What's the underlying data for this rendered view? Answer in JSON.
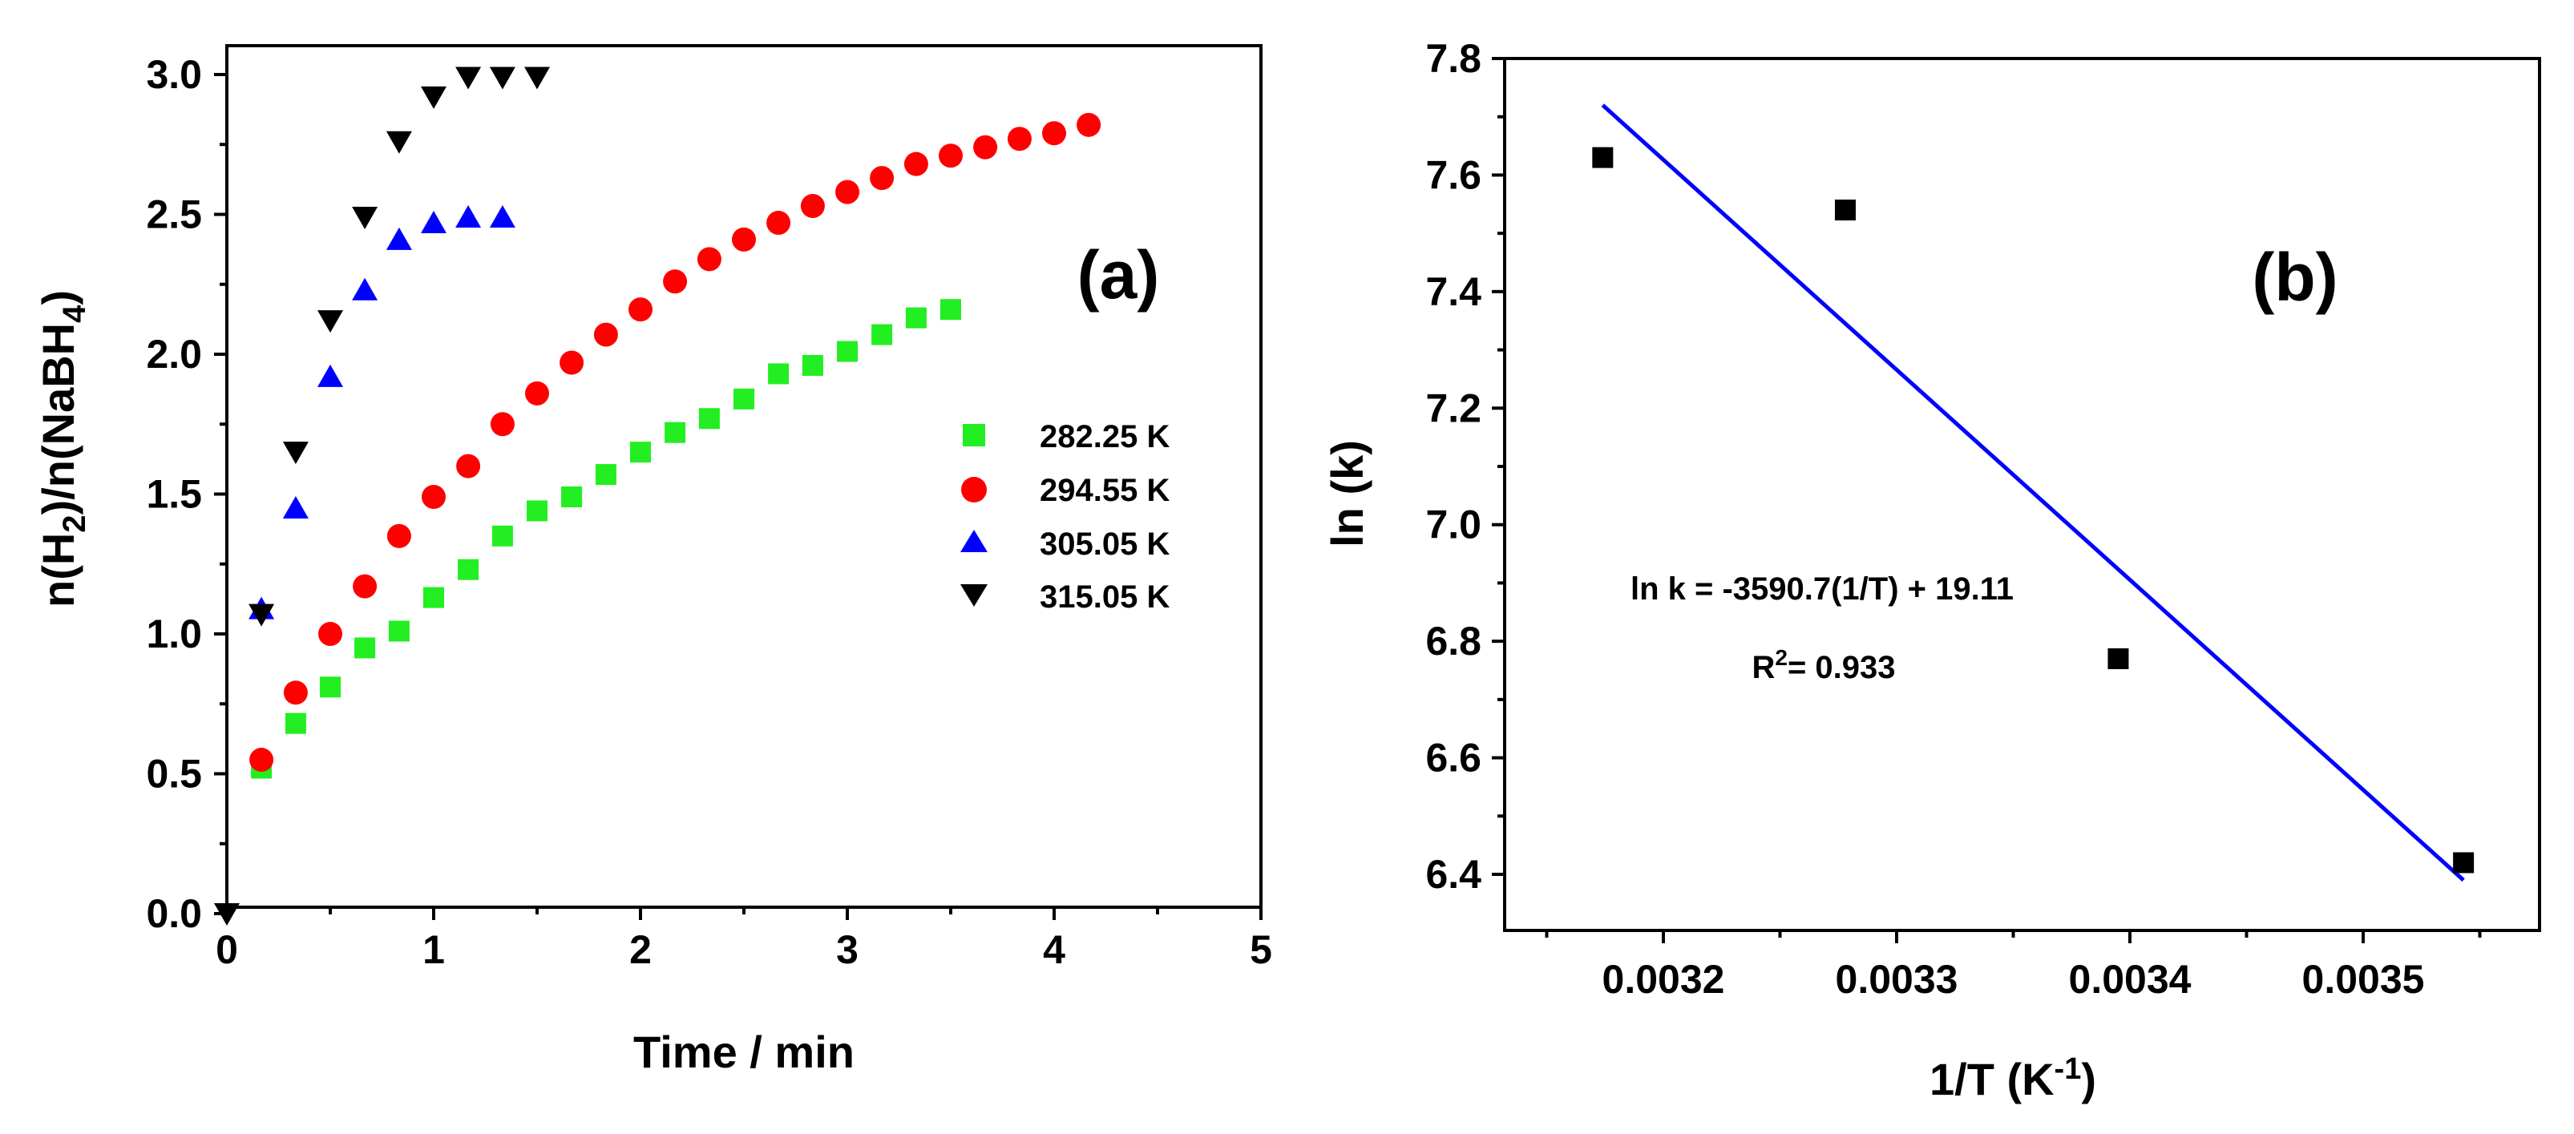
{
  "chart_data": [
    {
      "type": "scatter",
      "panel_label": "(a)",
      "xlabel": "Time / min",
      "ylabel": {
        "base": "n(H",
        "sub1": "2",
        "mid": ")/n(NaBH",
        "sub2": "4",
        "end": ")"
      },
      "xlim": [
        0,
        5
      ],
      "ylim": [
        0,
        3.0
      ],
      "xticks": [
        "0",
        "1",
        "2",
        "3",
        "4",
        "5"
      ],
      "yticks": [
        "0.0",
        "0.5",
        "1.0",
        "1.5",
        "2.0",
        "2.5",
        "3.0"
      ],
      "legend_position": "right-middle",
      "series": [
        {
          "name": "282.25 K",
          "marker": "square",
          "color": "#22ee22",
          "x": [
            0.167,
            0.333,
            0.5,
            0.667,
            0.833,
            1.0,
            1.167,
            1.333,
            1.5,
            1.667,
            1.833,
            2.0,
            2.167,
            2.333,
            2.5,
            2.667,
            2.833,
            3.0,
            3.167,
            3.333,
            3.5
          ],
          "y": [
            0.52,
            0.68,
            0.81,
            0.95,
            1.01,
            1.13,
            1.23,
            1.35,
            1.44,
            1.49,
            1.57,
            1.65,
            1.72,
            1.77,
            1.84,
            1.93,
            1.96,
            2.01,
            2.07,
            2.13,
            2.16
          ]
        },
        {
          "name": "294.55 K",
          "marker": "circle",
          "color": "#ff0000",
          "x": [
            0.167,
            0.333,
            0.5,
            0.667,
            0.833,
            1.0,
            1.167,
            1.333,
            1.5,
            1.667,
            1.833,
            2.0,
            2.167,
            2.333,
            2.5,
            2.667,
            2.833,
            3.0,
            3.167,
            3.333,
            3.5,
            3.667,
            3.833,
            4.0,
            4.167
          ],
          "y": [
            0.55,
            0.79,
            1.0,
            1.17,
            1.35,
            1.49,
            1.6,
            1.75,
            1.86,
            1.97,
            2.07,
            2.16,
            2.26,
            2.34,
            2.41,
            2.47,
            2.53,
            2.58,
            2.63,
            2.68,
            2.71,
            2.74,
            2.77,
            2.79,
            2.82
          ]
        },
        {
          "name": "305.05 K",
          "marker": "triangle-up",
          "color": "#0000ff",
          "x": [
            0.167,
            0.333,
            0.5,
            0.667,
            0.833,
            1.0,
            1.167,
            1.333
          ],
          "y": [
            1.09,
            1.45,
            1.92,
            2.23,
            2.41,
            2.47,
            2.49,
            2.49
          ]
        },
        {
          "name": "315.05 K",
          "marker": "triangle-down",
          "color": "#000000",
          "x": [
            0.0,
            0.167,
            0.333,
            0.5,
            0.667,
            0.833,
            1.0,
            1.167,
            1.333,
            1.5
          ],
          "y": [
            0.0,
            1.07,
            1.65,
            2.12,
            2.49,
            2.76,
            2.92,
            2.99,
            2.99,
            2.99
          ]
        }
      ]
    },
    {
      "type": "scatter",
      "panel_label": "(b)",
      "xlabel": {
        "base": "1/T (K",
        "sup": "-1",
        "end": ")"
      },
      "ylabel": "ln (k)",
      "xlim": [
        0.003125,
        0.003575
      ],
      "ylim": [
        6.3,
        7.8
      ],
      "xticks": [
        "0.0032",
        "0.0033",
        "0.0034",
        "0.0035"
      ],
      "xtick_values": [
        0.0032,
        0.0033,
        0.0034,
        0.0035
      ],
      "yticks": [
        "6.4",
        "6.6",
        "6.8",
        "7.0",
        "7.2",
        "7.4",
        "7.6",
        "7.8"
      ],
      "ytick_values": [
        6.4,
        6.6,
        6.8,
        7.0,
        7.2,
        7.4,
        7.6,
        7.8
      ],
      "points": {
        "marker": "square",
        "color": "#000000",
        "x": [
          0.003174,
          0.003278,
          0.003395,
          0.003543
        ],
        "y": [
          7.63,
          7.54,
          6.77,
          6.42
        ]
      },
      "fit_line": {
        "color": "#0000ff",
        "x": [
          0.003174,
          0.003543
        ],
        "y": [
          7.72,
          6.39
        ]
      },
      "equation": "ln k = -3590.7(1/T) + 19.11",
      "r2": {
        "base": "R",
        "sup": "2",
        "rest": "= 0.933"
      }
    }
  ]
}
